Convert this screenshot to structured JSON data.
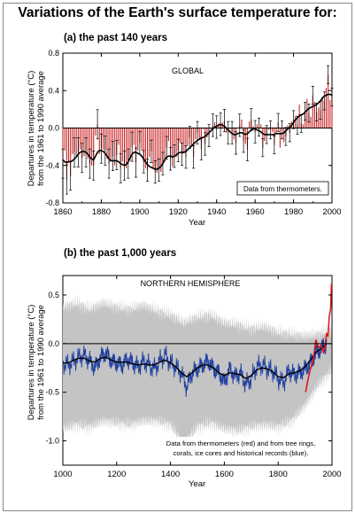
{
  "title": "Variations of the Earth's surface temperature for:",
  "chart_data": [
    {
      "type": "bar",
      "subtitle": "(a) the past 140 years",
      "panel_label": "GLOBAL",
      "note": "Data from thermometers.",
      "xlabel": "Year",
      "ylabel_line1": "Departures in temperature (°C)",
      "ylabel_line2": "from the 1961 to 1990 average",
      "xlim": [
        1860,
        2000
      ],
      "ylim": [
        -0.8,
        0.8
      ],
      "xticks": [
        1860,
        1880,
        1900,
        1920,
        1940,
        1960,
        1980,
        2000
      ],
      "yticks": [
        -0.8,
        -0.4,
        0.0,
        0.4,
        0.8
      ],
      "ytick_labels": [
        "-0.8",
        "-0.4",
        "0.0",
        "0.4",
        "0.8"
      ],
      "x_start": 1860,
      "bar_color": "#cc2222",
      "smooth_color": "#000000",
      "values": [
        -0.38,
        -0.24,
        -0.55,
        -0.36,
        -0.51,
        -0.28,
        -0.26,
        -0.3,
        -0.26,
        -0.23,
        -0.32,
        -0.3,
        -0.26,
        -0.33,
        -0.38,
        -0.4,
        -0.4,
        -0.08,
        0.04,
        -0.28,
        -0.22,
        -0.23,
        -0.24,
        -0.33,
        -0.38,
        -0.36,
        -0.3,
        -0.4,
        -0.29,
        -0.18,
        -0.43,
        -0.36,
        -0.4,
        -0.43,
        -0.38,
        -0.35,
        -0.2,
        -0.18,
        -0.37,
        -0.24,
        -0.16,
        -0.24,
        -0.36,
        -0.43,
        -0.45,
        -0.31,
        -0.25,
        -0.43,
        -0.47,
        -0.48,
        -0.45,
        -0.47,
        -0.38,
        -0.36,
        -0.21,
        -0.14,
        -0.33,
        -0.41,
        -0.3,
        -0.31,
        -0.24,
        -0.16,
        -0.28,
        -0.27,
        -0.31,
        -0.19,
        -0.1,
        -0.2,
        -0.31,
        -0.12,
        -0.05,
        -0.13,
        -0.22,
        -0.01,
        -0.17,
        -0.1,
        -0.08,
        -0.01,
        0.03,
        0.06,
        0.01,
        0.05,
        0.04,
        0.06,
        0.08,
        -0.05,
        -0.05,
        -0.01,
        -0.05,
        -0.12,
        -0.16,
        0.0,
        0.03,
        0.09,
        -0.14,
        -0.17,
        -0.23,
        0.07,
        0.09,
        0.02,
        -0.04,
        0.04,
        0.01,
        0.04,
        -0.21,
        -0.14,
        -0.07,
        -0.02,
        -0.02,
        -0.04,
        -0.18,
        -0.06,
        0.06,
        -0.21,
        -0.02,
        -0.15,
        -0.09,
        0.03,
        -0.05,
        0.07,
        0.09,
        0.13,
        0.03,
        0.25,
        0.05,
        0.04,
        0.18,
        0.31,
        0.16,
        0.12,
        0.35,
        0.28,
        0.17,
        0.22,
        0.19,
        0.33,
        0.29,
        0.43,
        0.57,
        0.3,
        0.33
      ],
      "smooth": [
        -0.34,
        -0.36,
        -0.37,
        -0.36,
        -0.36,
        -0.35,
        -0.33,
        -0.31,
        -0.28,
        -0.26,
        -0.25,
        -0.25,
        -0.26,
        -0.28,
        -0.31,
        -0.33,
        -0.34,
        -0.3,
        -0.26,
        -0.24,
        -0.24,
        -0.25,
        -0.27,
        -0.3,
        -0.33,
        -0.35,
        -0.35,
        -0.35,
        -0.35,
        -0.36,
        -0.38,
        -0.39,
        -0.4,
        -0.39,
        -0.36,
        -0.32,
        -0.28,
        -0.26,
        -0.26,
        -0.27,
        -0.28,
        -0.3,
        -0.33,
        -0.36,
        -0.39,
        -0.41,
        -0.42,
        -0.43,
        -0.44,
        -0.44,
        -0.43,
        -0.41,
        -0.38,
        -0.34,
        -0.31,
        -0.3,
        -0.3,
        -0.31,
        -0.3,
        -0.29,
        -0.27,
        -0.26,
        -0.26,
        -0.26,
        -0.25,
        -0.23,
        -0.21,
        -0.19,
        -0.17,
        -0.15,
        -0.13,
        -0.12,
        -0.11,
        -0.1,
        -0.09,
        -0.07,
        -0.05,
        -0.03,
        -0.01,
        0.01,
        0.02,
        0.03,
        0.04,
        0.03,
        0.02,
        0.0,
        -0.02,
        -0.04,
        -0.06,
        -0.07,
        -0.07,
        -0.06,
        -0.05,
        -0.05,
        -0.06,
        -0.07,
        -0.06,
        -0.04,
        -0.02,
        -0.01,
        -0.01,
        -0.02,
        -0.03,
        -0.04,
        -0.06,
        -0.07,
        -0.07,
        -0.07,
        -0.07,
        -0.07,
        -0.07,
        -0.06,
        -0.06,
        -0.06,
        -0.06,
        -0.05,
        -0.03,
        -0.01,
        0.01,
        0.03,
        0.06,
        0.09,
        0.11,
        0.13,
        0.14,
        0.15,
        0.17,
        0.19,
        0.21,
        0.22,
        0.23,
        0.24,
        0.25,
        0.27,
        0.29,
        0.32,
        0.34,
        0.35,
        0.36,
        0.36,
        0.35
      ],
      "error_bar": 0.12
    },
    {
      "type": "line",
      "subtitle": "(b) the past 1,000 years",
      "panel_label": "NORTHERN HEMISPHERE",
      "note_line1": "Data from thermometers (red) and from tree rings,",
      "note_line2": "corals, ice cores and historical records (blue).",
      "xlabel": "Year",
      "ylabel_line1": "Departures in temperature (°C)",
      "ylabel_line2": "from the 1961 to 1990 average",
      "xlim": [
        1000,
        2000
      ],
      "ylim": [
        -1.25,
        0.7
      ],
      "xticks": [
        1000,
        1200,
        1400,
        1600,
        1800,
        2000
      ],
      "yticks": [
        -1.0,
        -0.5,
        0.0,
        0.5
      ],
      "ytick_labels": [
        "-1.0",
        "-0.5",
        "0.0",
        "0.5"
      ],
      "series": [
        {
          "color": "#1f3fa0",
          "x": [
            1000,
            1020,
            1040,
            1060,
            1080,
            1100,
            1120,
            1140,
            1160,
            1180,
            1200,
            1220,
            1240,
            1260,
            1280,
            1300,
            1320,
            1340,
            1360,
            1380,
            1400,
            1420,
            1440,
            1460,
            1480,
            1500,
            1520,
            1540,
            1560,
            1580,
            1600,
            1620,
            1640,
            1660,
            1680,
            1700,
            1720,
            1740,
            1760,
            1780,
            1800,
            1820,
            1840,
            1860,
            1880,
            1900,
            1920,
            1940,
            1960,
            1980
          ],
          "y": [
            -0.2,
            -0.22,
            -0.18,
            -0.14,
            -0.12,
            -0.18,
            -0.25,
            -0.14,
            -0.1,
            -0.18,
            -0.2,
            -0.22,
            -0.16,
            -0.2,
            -0.24,
            -0.18,
            -0.22,
            -0.26,
            -0.18,
            -0.12,
            -0.2,
            -0.24,
            -0.3,
            -0.45,
            -0.3,
            -0.26,
            -0.22,
            -0.18,
            -0.26,
            -0.3,
            -0.4,
            -0.26,
            -0.34,
            -0.3,
            -0.42,
            -0.36,
            -0.24,
            -0.22,
            -0.26,
            -0.28,
            -0.36,
            -0.4,
            -0.28,
            -0.32,
            -0.3,
            -0.26,
            -0.2,
            -0.1,
            -0.05,
            0.0
          ]
        },
        {
          "color": "#000000",
          "x": [
            1000,
            1020,
            1040,
            1060,
            1080,
            1100,
            1120,
            1140,
            1160,
            1180,
            1200,
            1220,
            1240,
            1260,
            1280,
            1300,
            1320,
            1340,
            1360,
            1380,
            1400,
            1420,
            1440,
            1460,
            1480,
            1500,
            1520,
            1540,
            1560,
            1580,
            1600,
            1620,
            1640,
            1660,
            1680,
            1700,
            1720,
            1740,
            1760,
            1780,
            1800,
            1820,
            1840,
            1860,
            1880,
            1900,
            1920,
            1940,
            1960,
            1980
          ],
          "y": [
            -0.2,
            -0.2,
            -0.17,
            -0.15,
            -0.15,
            -0.18,
            -0.19,
            -0.15,
            -0.14,
            -0.17,
            -0.19,
            -0.19,
            -0.19,
            -0.21,
            -0.22,
            -0.21,
            -0.22,
            -0.22,
            -0.19,
            -0.17,
            -0.2,
            -0.24,
            -0.3,
            -0.34,
            -0.3,
            -0.25,
            -0.22,
            -0.22,
            -0.25,
            -0.3,
            -0.33,
            -0.3,
            -0.31,
            -0.32,
            -0.36,
            -0.33,
            -0.27,
            -0.25,
            -0.26,
            -0.29,
            -0.34,
            -0.35,
            -0.31,
            -0.3,
            -0.28,
            -0.24,
            -0.17,
            -0.09,
            -0.05,
            0.0
          ]
        },
        {
          "color": "#dd1111",
          "x": [
            1902,
            1910,
            1920,
            1930,
            1940,
            1950,
            1960,
            1970,
            1980,
            1985,
            1990,
            1995,
            1998
          ],
          "y": [
            -0.5,
            -0.38,
            -0.26,
            -0.18,
            0.04,
            -0.04,
            -0.02,
            -0.1,
            0.1,
            0.08,
            0.28,
            0.36,
            0.62
          ]
        }
      ],
      "uncertainty_color": "#c4c4c4",
      "uncertainty_x": [
        1000,
        1050,
        1100,
        1150,
        1200,
        1250,
        1300,
        1350,
        1400,
        1450,
        1500,
        1550,
        1600,
        1650,
        1700,
        1750,
        1800,
        1850,
        1900,
        1950,
        1998
      ],
      "uncertainty_upper": [
        0.38,
        0.42,
        0.36,
        0.42,
        0.38,
        0.36,
        0.4,
        0.34,
        0.3,
        0.22,
        0.28,
        0.3,
        0.22,
        0.2,
        0.16,
        0.18,
        0.12,
        0.1,
        0.08,
        0.1,
        0.15
      ],
      "uncertainty_lower": [
        -0.88,
        -0.84,
        -0.86,
        -0.8,
        -0.82,
        -0.84,
        -0.8,
        -0.8,
        -0.84,
        -1.04,
        -0.86,
        -0.82,
        -0.88,
        -0.9,
        -0.86,
        -0.84,
        -0.86,
        -0.8,
        -0.64,
        -0.42,
        -0.28
      ]
    }
  ]
}
